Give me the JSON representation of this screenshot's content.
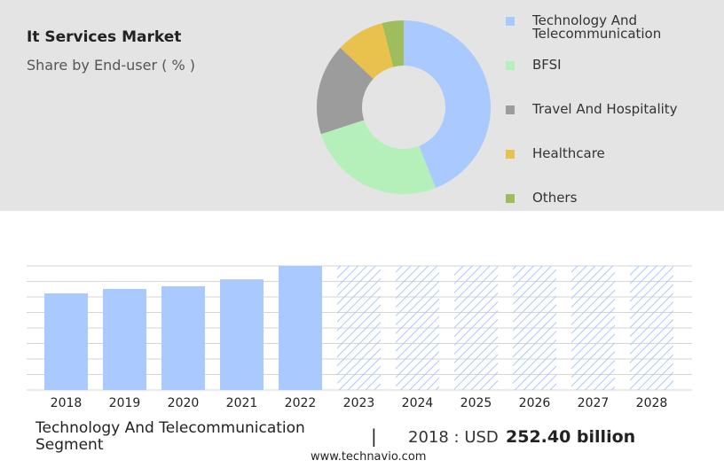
{
  "chart_data": [
    {
      "type": "donut",
      "title": "It Services Market",
      "subtitle": "Share by End-user ( % )",
      "categories": [
        "Technology And Telecommunication",
        "BFSI",
        "Travel And Hospitality",
        "Healthcare",
        "Others"
      ],
      "values": [
        44,
        26,
        17,
        9,
        4
      ],
      "colors": [
        "#a9c9ff",
        "#b5f0bb",
        "#9c9c9c",
        "#e8c24c",
        "#9fbd5c"
      ]
    },
    {
      "type": "bar",
      "categories": [
        "2018",
        "2019",
        "2020",
        "2021",
        "2022",
        "2023",
        "2024",
        "2025",
        "2026",
        "2027",
        "2028"
      ],
      "values": [
        252.4,
        264,
        271,
        289,
        324,
        null,
        null,
        null,
        null,
        null,
        null
      ],
      "color": "#a9c9ff",
      "ylim": [
        0,
        324
      ]
    }
  ],
  "footer": {
    "segment": "Technology And Telecommunication Segment",
    "separator": "|",
    "year_label": "2018 : USD",
    "value_label": "252.40 billion",
    "site": "www.technavio.com"
  }
}
